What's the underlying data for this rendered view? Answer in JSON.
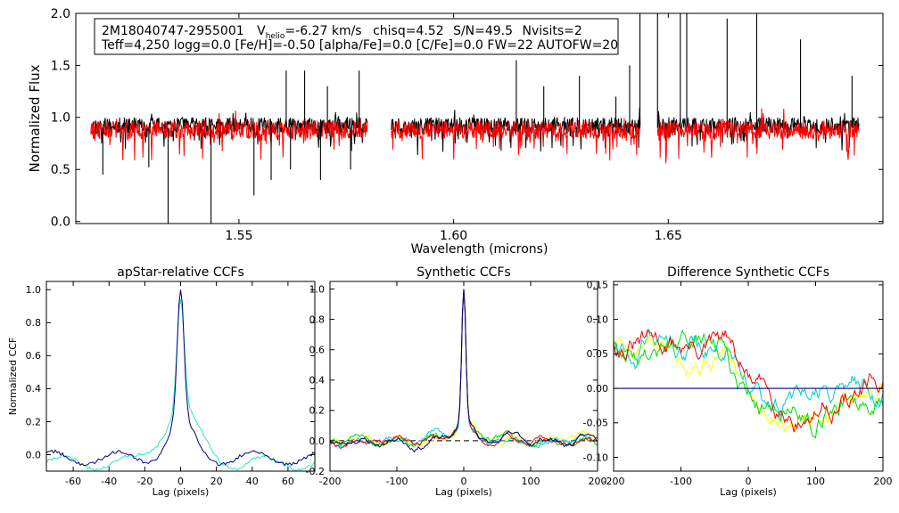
{
  "chart_data": [
    {
      "type": "line",
      "id": "spectrum",
      "title": "",
      "xlabel": "Wavelength (microns)",
      "ylabel": "Normalized Flux",
      "xlim": [
        1.512,
        1.7
      ],
      "ylim": [
        -0.02,
        2.0
      ],
      "xticks": [
        1.55,
        1.6,
        1.65
      ],
      "xtick_labels": [
        "1.55",
        "1.60",
        "1.65"
      ],
      "yticks": [
        0.0,
        0.5,
        1.0,
        1.5,
        2.0
      ],
      "ytick_labels": [
        "0.0",
        "0.5",
        "1.0",
        "1.5",
        "2.0"
      ],
      "info_box": {
        "line1": {
          "star_id": "2M18040747-2955001",
          "vhelio_label": "V",
          "vhelio_sub": "helio",
          "vhelio_value": "=-6.27 km/s",
          "chisq": "chisq=4.52",
          "snr": "S/N=49.5",
          "nvisits": "Nvisits=2"
        },
        "line2": "Teff=4,250 logg=0.0 [Fe/H]=-0.50 [alpha/Fe]=0.0 [C/Fe]=0.0 FW=22 AUTOFW=20"
      },
      "chips": [
        [
          1.5155,
          1.58
        ],
        [
          1.5855,
          1.6435
        ],
        [
          1.6475,
          1.6945
        ]
      ],
      "series": [
        {
          "name": "observed",
          "color": "#000000",
          "level": 0.92,
          "noise": 0.08,
          "seed": 11
        },
        {
          "name": "model",
          "color": "#ff0000",
          "level": 0.88,
          "noise": 0.09,
          "seed": 29
        }
      ],
      "spikes_up": [
        {
          "x": 1.6434,
          "y": 2.0
        },
        {
          "x": 1.6475,
          "y": 2.0
        },
        {
          "x": 1.6528,
          "y": 2.0
        },
        {
          "x": 1.6543,
          "y": 2.0
        },
        {
          "x": 1.6637,
          "y": 1.95
        },
        {
          "x": 1.6706,
          "y": 2.0
        },
        {
          "x": 1.6808,
          "y": 1.75
        },
        {
          "x": 1.6928,
          "y": 1.4
        },
        {
          "x": 1.6293,
          "y": 1.4
        },
        {
          "x": 1.6378,
          "y": 1.2
        },
        {
          "x": 1.6146,
          "y": 1.55
        },
        {
          "x": 1.5653,
          "y": 1.45
        },
        {
          "x": 1.561,
          "y": 1.45
        },
        {
          "x": 1.5706,
          "y": 1.3
        },
        {
          "x": 1.578,
          "y": 1.45
        },
        {
          "x": 1.641,
          "y": 1.5
        },
        {
          "x": 1.621,
          "y": 1.3
        }
      ],
      "spikes_down": [
        {
          "x": 1.5335,
          "y": -0.02
        },
        {
          "x": 1.5435,
          "y": -0.02
        },
        {
          "x": 1.5535,
          "y": 0.25
        },
        {
          "x": 1.5183,
          "y": 0.45
        },
        {
          "x": 1.562,
          "y": 0.5
        },
        {
          "x": 1.569,
          "y": 0.4
        },
        {
          "x": 1.576,
          "y": 0.5
        },
        {
          "x": 1.529,
          "y": 0.52
        },
        {
          "x": 1.5575,
          "y": 0.4
        }
      ]
    },
    {
      "type": "line",
      "id": "apstar_ccf",
      "title": "apStar-relative CCFs",
      "xlabel": "Lag (pixels)",
      "ylabel": "Normalized CCF",
      "xlim": [
        -75,
        75
      ],
      "ylim": [
        -0.1,
        1.05
      ],
      "xticks": [
        -60,
        -40,
        -20,
        0,
        20,
        40,
        60
      ],
      "xtick_labels": [
        "-60",
        "-40",
        "-20",
        "0",
        "20",
        "40",
        "60"
      ],
      "yticks": [
        0.0,
        0.2,
        0.4,
        0.6,
        0.8,
        1.0
      ],
      "ytick_labels": [
        "0.0",
        "0.2",
        "0.4",
        "0.6",
        "0.8",
        "1.0"
      ],
      "series": [
        {
          "name": "visit-1",
          "color": "#20e8c0",
          "amp": 1.0,
          "sigma": 2.0,
          "wing": 0.32,
          "wsig": 10,
          "base": -0.05
        },
        {
          "name": "visit-2",
          "color": "#000080",
          "amp": 1.0,
          "sigma": 1.8,
          "wing": 0.22,
          "wsig": 7,
          "base": -0.02
        }
      ]
    },
    {
      "type": "line",
      "id": "synthetic_ccf",
      "title": "Synthetic CCFs",
      "xlabel": "Lag (pixels)",
      "ylabel": "",
      "xlim": [
        -200,
        200
      ],
      "ylim": [
        -0.2,
        1.05
      ],
      "xticks": [
        -200,
        -100,
        0,
        100,
        200
      ],
      "xtick_labels": [
        "-200",
        "-100",
        "0",
        "100",
        "200"
      ],
      "yticks": [
        -0.2,
        0.0,
        0.2,
        0.4,
        0.6,
        0.8,
        1.0
      ],
      "ytick_labels": [
        "-0.2",
        "0.0",
        "0.2",
        "0.4",
        "0.6",
        "0.8",
        "1.0"
      ],
      "reference_line": {
        "y": 0.0,
        "style": "dashed"
      },
      "series": [
        {
          "name": "visit-a",
          "color": "#ffff00",
          "seed": 3
        },
        {
          "name": "visit-b",
          "color": "#00dd00",
          "seed": 7
        },
        {
          "name": "visit-c",
          "color": "#00cccc",
          "seed": 13
        },
        {
          "name": "visit-d",
          "color": "#ff0000",
          "seed": 19
        },
        {
          "name": "visit-e",
          "color": "#000080",
          "seed": 23
        }
      ]
    },
    {
      "type": "line",
      "id": "difference_ccf",
      "title": "Difference Synthetic CCFs",
      "xlabel": "Lag (pixels)",
      "ylabel": "",
      "xlim": [
        -200,
        200
      ],
      "ylim": [
        -0.12,
        0.155
      ],
      "xticks": [
        -200,
        -100,
        0,
        100,
        200
      ],
      "xtick_labels": [
        "-200",
        "-100",
        "0",
        "100",
        "200"
      ],
      "yticks": [
        -0.1,
        -0.05,
        0.0,
        0.05,
        0.1,
        0.15
      ],
      "ytick_labels": [
        "-0.10",
        "-0.05",
        "0.00",
        "0.05",
        "0.10",
        "0.15"
      ],
      "reference_line": {
        "y": 0.0,
        "color": "#000080",
        "style": "solid"
      },
      "series": [
        {
          "name": "visit-a",
          "color": "#ffff00",
          "seed": 5
        },
        {
          "name": "visit-b",
          "color": "#00dd00",
          "seed": 9
        },
        {
          "name": "visit-c",
          "color": "#00cccc",
          "seed": 15
        },
        {
          "name": "visit-d",
          "color": "#ff0000",
          "seed": 31
        }
      ]
    }
  ]
}
